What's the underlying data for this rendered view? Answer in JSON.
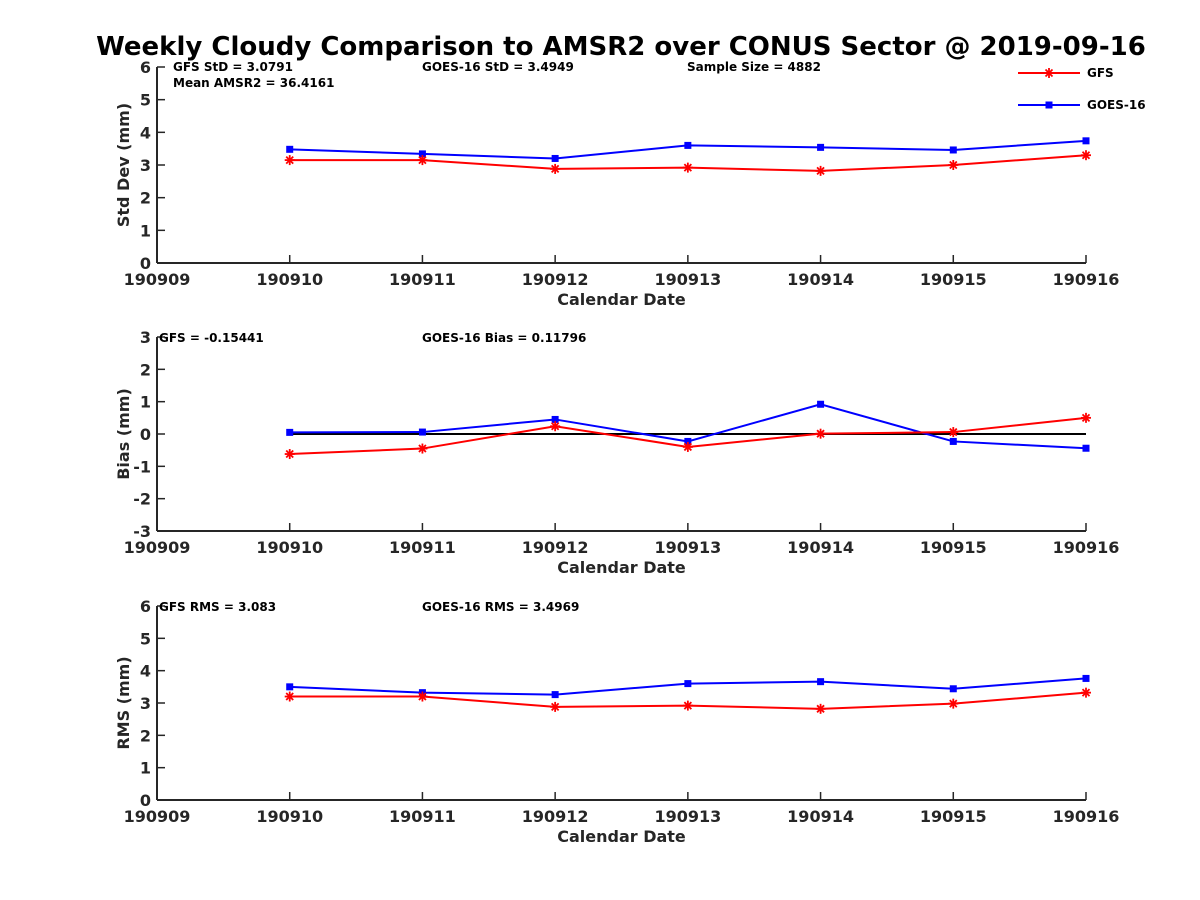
{
  "title": "Weekly Cloudy Comparison to AMSR2 over CONUS Sector @ 2019-09-16",
  "colors": {
    "GFS": "#ff0000",
    "GOES-16": "#0000ff",
    "zero_line": "#000000",
    "axis": "#262626"
  },
  "legend": {
    "placement": "top-right",
    "entries": [
      {
        "label": "GFS",
        "marker": "asterisk",
        "color": "#ff0000"
      },
      {
        "label": "GOES-16",
        "marker": "square",
        "color": "#0000ff"
      }
    ]
  },
  "chart_data": [
    {
      "type": "line",
      "xlabel": "Calendar Date",
      "ylabel": "Std Dev (mm)",
      "x_ticks": [
        "190909",
        "190910",
        "190911",
        "190912",
        "190913",
        "190914",
        "190915",
        "190916"
      ],
      "ylim": [
        0,
        6
      ],
      "y_ticks": [
        "0",
        "1",
        "2",
        "3",
        "4",
        "5",
        "6"
      ],
      "grid": false,
      "annotations": [
        "GFS StD = 3.0791",
        "Mean AMSR2 = 36.4161",
        "GOES-16 StD = 3.4949",
        "Sample Size = 4882"
      ],
      "series": [
        {
          "name": "GFS",
          "x": [
            "190910",
            "190911",
            "190912",
            "190913",
            "190914",
            "190915",
            "190916"
          ],
          "values": [
            3.15,
            3.15,
            2.88,
            2.92,
            2.82,
            3.0,
            3.3
          ]
        },
        {
          "name": "GOES-16",
          "x": [
            "190910",
            "190911",
            "190912",
            "190913",
            "190914",
            "190915",
            "190916"
          ],
          "values": [
            3.48,
            3.34,
            3.2,
            3.6,
            3.54,
            3.46,
            3.74
          ]
        }
      ]
    },
    {
      "type": "line",
      "xlabel": "Calendar Date",
      "ylabel": "Bias (mm)",
      "x_ticks": [
        "190909",
        "190910",
        "190911",
        "190912",
        "190913",
        "190914",
        "190915",
        "190916"
      ],
      "ylim": [
        -3,
        3
      ],
      "y_ticks": [
        "-3",
        "-2",
        "-1",
        "0",
        "1",
        "2",
        "3"
      ],
      "grid": false,
      "zero_line": true,
      "annotations": [
        "GFS = -0.15441",
        "GOES-16 Bias  = 0.11796"
      ],
      "series": [
        {
          "name": "GFS",
          "x": [
            "190910",
            "190911",
            "190912",
            "190913",
            "190914",
            "190915",
            "190916"
          ],
          "values": [
            -0.62,
            -0.45,
            0.24,
            -0.4,
            0.01,
            0.06,
            0.5
          ]
        },
        {
          "name": "GOES-16",
          "x": [
            "190910",
            "190911",
            "190912",
            "190913",
            "190914",
            "190915",
            "190916"
          ],
          "values": [
            0.05,
            0.06,
            0.45,
            -0.23,
            0.92,
            -0.23,
            -0.44
          ]
        }
      ]
    },
    {
      "type": "line",
      "xlabel": "Calendar Date",
      "ylabel": "RMS (mm)",
      "x_ticks": [
        "190909",
        "190910",
        "190911",
        "190912",
        "190913",
        "190914",
        "190915",
        "190916"
      ],
      "ylim": [
        0,
        6
      ],
      "y_ticks": [
        "0",
        "1",
        "2",
        "3",
        "4",
        "5",
        "6"
      ],
      "grid": false,
      "annotations": [
        "GFS RMS = 3.083",
        "GOES-16 RMS = 3.4969"
      ],
      "series": [
        {
          "name": "GFS",
          "x": [
            "190910",
            "190911",
            "190912",
            "190913",
            "190914",
            "190915",
            "190916"
          ],
          "values": [
            3.2,
            3.2,
            2.88,
            2.92,
            2.82,
            2.98,
            3.32
          ]
        },
        {
          "name": "GOES-16",
          "x": [
            "190910",
            "190911",
            "190912",
            "190913",
            "190914",
            "190915",
            "190916"
          ],
          "values": [
            3.5,
            3.32,
            3.26,
            3.6,
            3.66,
            3.44,
            3.76
          ]
        }
      ]
    }
  ]
}
